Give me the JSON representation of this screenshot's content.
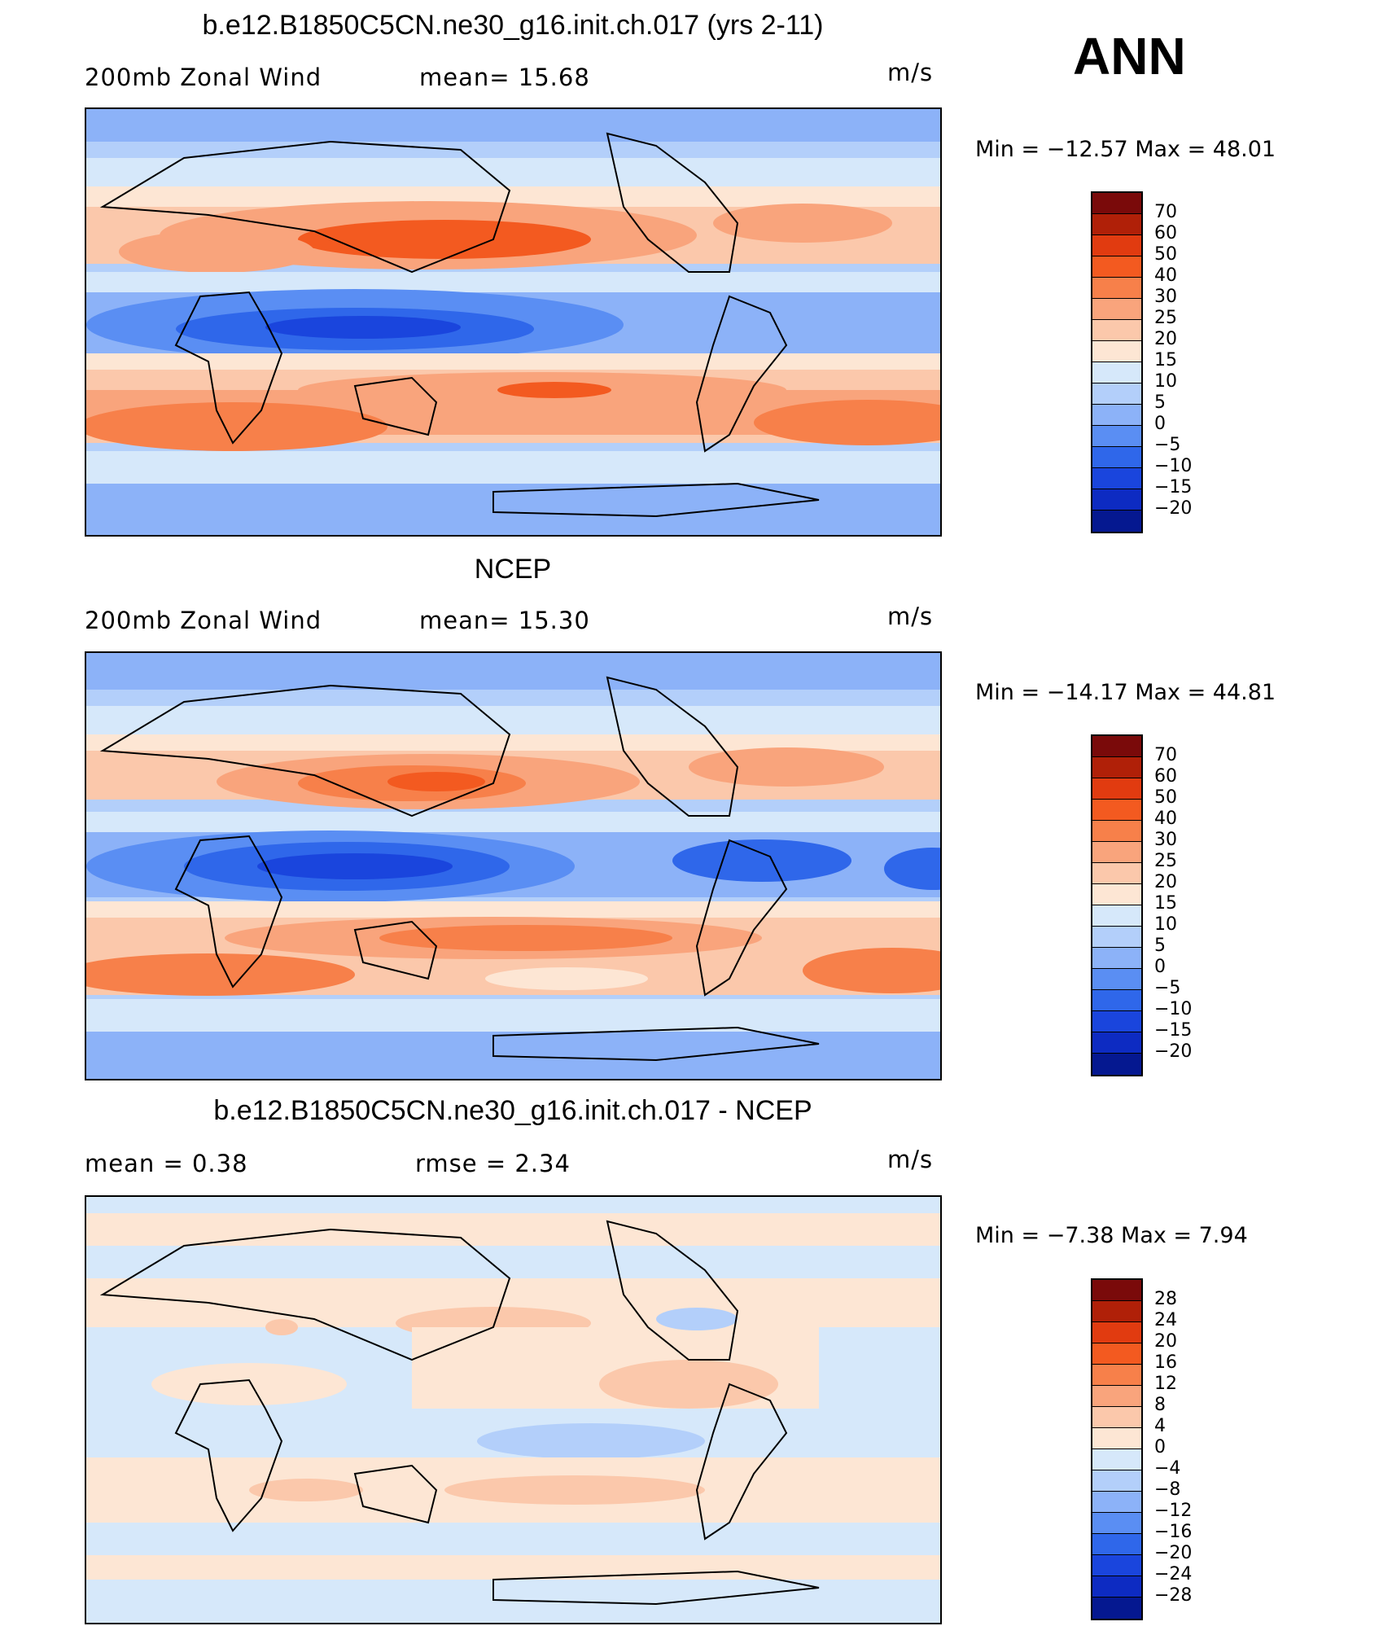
{
  "season": "ANN",
  "panels": [
    {
      "title": "b.e12.B1850C5CN.ne30_g16.init.ch.017 (yrs 2-11)",
      "left_label": "200mb Zonal Wind",
      "center_label": "mean=   15.68",
      "units": "m/s",
      "minmax": "Min  =  −12.57  Max  =    48.01",
      "legend_values": [
        "70",
        "60",
        "50",
        "40",
        "30",
        "25",
        "20",
        "15",
        "10",
        "5",
        "0",
        "−5",
        "−10",
        "−15",
        "−20"
      ]
    },
    {
      "title": "NCEP",
      "left_label": "200mb Zonal Wind",
      "center_label": "mean=   15.30",
      "units": "m/s",
      "minmax": "Min  =  −14.17  Max  =    44.81",
      "legend_values": [
        "70",
        "60",
        "50",
        "40",
        "30",
        "25",
        "20",
        "15",
        "10",
        "5",
        "0",
        "−5",
        "−10",
        "−15",
        "−20"
      ]
    },
    {
      "title": "b.e12.B1850C5CN.ne30_g16.init.ch.017 - NCEP",
      "left_label": "mean  =      0.38",
      "center_label": "rmse  =      2.34",
      "units": "m/s",
      "minmax": "Min  =     −7.38  Max  =      7.94",
      "legend_values": [
        "28",
        "24",
        "20",
        "16",
        "12",
        "8",
        "4",
        "0",
        "−4",
        "−8",
        "−12",
        "−16",
        "−20",
        "−24",
        "−28"
      ]
    }
  ],
  "colors": {
    "scale": [
      "#7a0a0a",
      "#b02008",
      "#e13b10",
      "#f35a20",
      "#f7804a",
      "#f9a47c",
      "#fbc8ab",
      "#fde6d4",
      "#d6e8fa",
      "#b3cffa",
      "#8cb2f8",
      "#5a8ef3",
      "#2f67ea",
      "#1a45dd",
      "#0d2bc2",
      "#051890"
    ],
    "coast": "#000000"
  }
}
